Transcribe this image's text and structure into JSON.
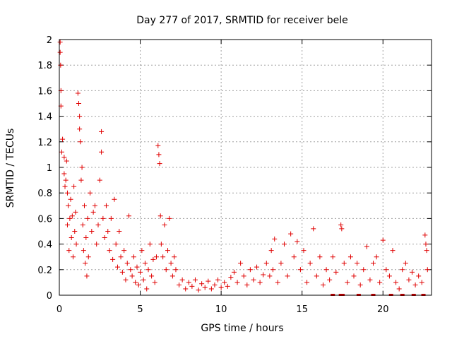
{
  "chart_data": {
    "type": "scatter",
    "title": "Day 277 of 2017, SRMTID for receiver bele",
    "xlabel": "GPS time / hours",
    "ylabel": "SRMTID / TECUs",
    "xlim": [
      0,
      23
    ],
    "ylim": [
      0,
      2
    ],
    "xticks": [
      0,
      5,
      10,
      15,
      20
    ],
    "yticks": [
      0,
      0.2,
      0.4,
      0.6,
      0.8,
      1,
      1.2,
      1.4,
      1.6,
      1.8,
      2
    ],
    "grid": true,
    "marker": "+",
    "color": "#e00000",
    "series": [
      {
        "name": "SRMTID",
        "points": [
          [
            0.05,
            1.98
          ],
          [
            0.05,
            1.9
          ],
          [
            0.08,
            1.8
          ],
          [
            0.1,
            1.6
          ],
          [
            0.1,
            1.48
          ],
          [
            0.15,
            1.12
          ],
          [
            0.2,
            1.22
          ],
          [
            0.3,
            1.08
          ],
          [
            0.3,
            0.95
          ],
          [
            0.35,
            0.85
          ],
          [
            0.4,
            0.9
          ],
          [
            0.45,
            1.05
          ],
          [
            0.5,
            0.8
          ],
          [
            0.5,
            0.55
          ],
          [
            0.55,
            0.7
          ],
          [
            0.6,
            0.35
          ],
          [
            0.65,
            0.6
          ],
          [
            0.7,
            0.75
          ],
          [
            0.75,
            0.45
          ],
          [
            0.8,
            0.62
          ],
          [
            0.85,
            0.3
          ],
          [
            0.9,
            0.85
          ],
          [
            0.95,
            0.5
          ],
          [
            1.0,
            0.65
          ],
          [
            1.05,
            0.4
          ],
          [
            1.15,
            1.58
          ],
          [
            1.2,
            1.5
          ],
          [
            1.25,
            1.4
          ],
          [
            1.25,
            1.3
          ],
          [
            1.3,
            1.2
          ],
          [
            1.35,
            0.9
          ],
          [
            1.4,
            1.0
          ],
          [
            1.45,
            0.55
          ],
          [
            1.5,
            0.35
          ],
          [
            1.55,
            0.7
          ],
          [
            1.6,
            0.25
          ],
          [
            1.65,
            0.45
          ],
          [
            1.7,
            0.15
          ],
          [
            1.75,
            0.6
          ],
          [
            1.8,
            0.3
          ],
          [
            1.9,
            0.8
          ],
          [
            2.0,
            0.5
          ],
          [
            2.1,
            0.65
          ],
          [
            2.2,
            0.7
          ],
          [
            2.3,
            0.4
          ],
          [
            2.4,
            0.55
          ],
          [
            2.5,
            0.9
          ],
          [
            2.6,
            1.28
          ],
          [
            2.6,
            1.12
          ],
          [
            2.7,
            0.6
          ],
          [
            2.8,
            0.45
          ],
          [
            2.9,
            0.7
          ],
          [
            3.0,
            0.5
          ],
          [
            3.1,
            0.35
          ],
          [
            3.2,
            0.6
          ],
          [
            3.3,
            0.28
          ],
          [
            3.4,
            0.75
          ],
          [
            3.5,
            0.4
          ],
          [
            3.6,
            0.22
          ],
          [
            3.7,
            0.5
          ],
          [
            3.8,
            0.3
          ],
          [
            3.9,
            0.18
          ],
          [
            4.0,
            0.35
          ],
          [
            4.1,
            0.12
          ],
          [
            4.2,
            0.25
          ],
          [
            4.3,
            0.62
          ],
          [
            4.4,
            0.2
          ],
          [
            4.5,
            0.15
          ],
          [
            4.6,
            0.3
          ],
          [
            4.7,
            0.1
          ],
          [
            4.8,
            0.22
          ],
          [
            4.9,
            0.08
          ],
          [
            5.0,
            0.18
          ],
          [
            5.1,
            0.35
          ],
          [
            5.2,
            0.12
          ],
          [
            5.3,
            0.25
          ],
          [
            5.4,
            0.05
          ],
          [
            5.5,
            0.2
          ],
          [
            5.6,
            0.4
          ],
          [
            5.7,
            0.15
          ],
          [
            5.8,
            0.28
          ],
          [
            5.9,
            0.1
          ],
          [
            6.0,
            0.3
          ],
          [
            6.1,
            1.17
          ],
          [
            6.15,
            1.1
          ],
          [
            6.2,
            1.03
          ],
          [
            6.25,
            0.62
          ],
          [
            6.3,
            0.4
          ],
          [
            6.4,
            0.3
          ],
          [
            6.5,
            0.55
          ],
          [
            6.6,
            0.2
          ],
          [
            6.7,
            0.35
          ],
          [
            6.8,
            0.6
          ],
          [
            6.9,
            0.25
          ],
          [
            7.0,
            0.15
          ],
          [
            7.1,
            0.3
          ],
          [
            7.2,
            0.2
          ],
          [
            7.4,
            0.08
          ],
          [
            7.6,
            0.12
          ],
          [
            7.8,
            0.05
          ],
          [
            8.0,
            0.1
          ],
          [
            8.2,
            0.07
          ],
          [
            8.4,
            0.12
          ],
          [
            8.6,
            0.04
          ],
          [
            8.8,
            0.09
          ],
          [
            9.0,
            0.06
          ],
          [
            9.2,
            0.11
          ],
          [
            9.4,
            0.05
          ],
          [
            9.6,
            0.08
          ],
          [
            9.8,
            0.12
          ],
          [
            10.0,
            0.06
          ],
          [
            10.2,
            0.1
          ],
          [
            10.4,
            0.07
          ],
          [
            10.6,
            0.14
          ],
          [
            10.8,
            0.18
          ],
          [
            11.0,
            0.1
          ],
          [
            11.2,
            0.25
          ],
          [
            11.4,
            0.15
          ],
          [
            11.6,
            0.08
          ],
          [
            11.8,
            0.2
          ],
          [
            12.0,
            0.12
          ],
          [
            12.2,
            0.22
          ],
          [
            12.4,
            0.1
          ],
          [
            12.6,
            0.16
          ],
          [
            12.8,
            0.25
          ],
          [
            13.0,
            0.15
          ],
          [
            13.1,
            0.35
          ],
          [
            13.2,
            0.2
          ],
          [
            13.3,
            0.44
          ],
          [
            13.5,
            0.1
          ],
          [
            13.7,
            0.25
          ],
          [
            13.9,
            0.4
          ],
          [
            14.1,
            0.15
          ],
          [
            14.3,
            0.48
          ],
          [
            14.5,
            0.3
          ],
          [
            14.7,
            0.42
          ],
          [
            14.9,
            0.2
          ],
          [
            15.1,
            0.35
          ],
          [
            15.3,
            0.1
          ],
          [
            15.5,
            0.25
          ],
          [
            15.7,
            0.52
          ],
          [
            15.9,
            0.15
          ],
          [
            16.1,
            0.3
          ],
          [
            16.3,
            0.08
          ],
          [
            16.5,
            0.2
          ],
          [
            16.7,
            0.12
          ],
          [
            16.9,
            0.3
          ],
          [
            17.1,
            0.18
          ],
          [
            17.4,
            0.55
          ],
          [
            17.45,
            0.52
          ],
          [
            17.6,
            0.25
          ],
          [
            17.8,
            0.1
          ],
          [
            18.0,
            0.3
          ],
          [
            18.2,
            0.15
          ],
          [
            18.4,
            0.25
          ],
          [
            18.6,
            0.08
          ],
          [
            18.8,
            0.2
          ],
          [
            19.0,
            0.38
          ],
          [
            19.2,
            0.12
          ],
          [
            19.4,
            0.25
          ],
          [
            19.6,
            0.3
          ],
          [
            19.8,
            0.1
          ],
          [
            20.0,
            0.43
          ],
          [
            20.2,
            0.2
          ],
          [
            20.4,
            0.15
          ],
          [
            20.6,
            0.35
          ],
          [
            20.8,
            0.1
          ],
          [
            21.0,
            0.05
          ],
          [
            21.2,
            0.2
          ],
          [
            21.4,
            0.25
          ],
          [
            21.6,
            0.12
          ],
          [
            21.8,
            0.18
          ],
          [
            22.0,
            0.08
          ],
          [
            22.2,
            0.15
          ],
          [
            22.4,
            0.1
          ],
          [
            22.6,
            0.47
          ],
          [
            22.65,
            0.4
          ],
          [
            22.7,
            0.35
          ],
          [
            22.75,
            0.2
          ]
        ]
      }
    ],
    "bottom_markers": [
      16.9,
      17.4,
      17.5,
      18.5,
      19.4,
      20.5,
      21.2,
      21.9,
      22.5
    ]
  }
}
